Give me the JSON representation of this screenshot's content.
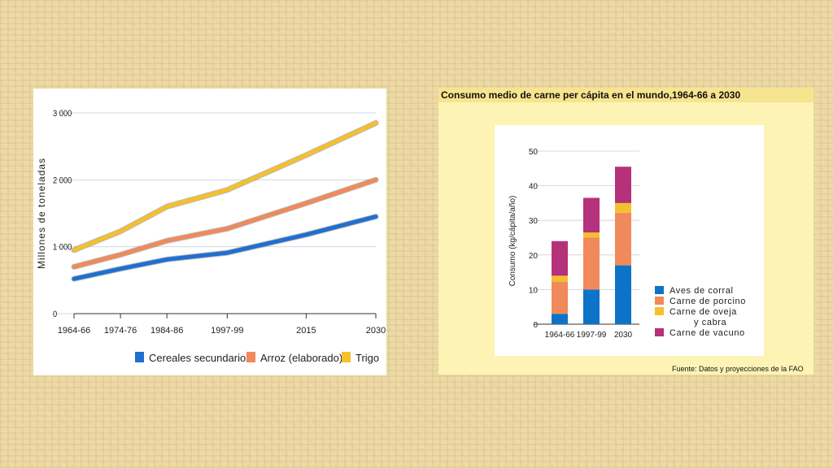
{
  "chart_data": [
    {
      "type": "line",
      "title": "",
      "ylabel": "Millones de toneladas",
      "xlabel": "",
      "ylim": [
        0,
        3000
      ],
      "yticks": [
        0,
        1000,
        2000,
        3000
      ],
      "ytick_labels": [
        "0",
        "1 000",
        "2 000",
        "3 000"
      ],
      "x": [
        "1964-66",
        "1974-76",
        "1984-86",
        "1997-99",
        "2015",
        "2030"
      ],
      "x_values": [
        1965,
        1975,
        1985,
        1998,
        2015,
        2030
      ],
      "grid": true,
      "legend_position": "bottom",
      "series": [
        {
          "name": "Cereales secundarios",
          "color": "#1f6fd1",
          "values": [
            520,
            670,
            810,
            910,
            1180,
            1450
          ]
        },
        {
          "name": "Arroz (elaborado)",
          "color": "#f08a5a",
          "values": [
            700,
            880,
            1090,
            1270,
            1650,
            2000
          ]
        },
        {
          "name": "Trigo",
          "color": "#f5c02c",
          "values": [
            950,
            1230,
            1600,
            1850,
            2370,
            2850
          ]
        }
      ]
    },
    {
      "type": "bar",
      "stacked": true,
      "title": "Consumo medio de carne per cápita en el mundo,1964-66 a 2030",
      "ylabel": "Consumo (kg/cápita/año)",
      "xlabel": "",
      "ylim": [
        0,
        50
      ],
      "yticks": [
        0,
        10,
        20,
        30,
        40,
        50
      ],
      "categories": [
        "1964-66",
        "1997-99",
        "2030"
      ],
      "legend_position": "right",
      "series": [
        {
          "name": "Aves de corral",
          "color": "#0d73c9",
          "values": [
            3,
            10,
            17
          ]
        },
        {
          "name": "Carne de porcino",
          "color": "#f08a5a",
          "values": [
            9.3,
            15,
            15.2
          ]
        },
        {
          "name": "Carne de oveja y cabra",
          "color": "#f5c02c",
          "values": [
            1.7,
            1.5,
            2.8
          ]
        },
        {
          "name": "Carne de vacuno",
          "color": "#b5317a",
          "values": [
            10,
            10,
            10.5
          ]
        }
      ],
      "legend_lines": [
        [
          "Aves de corral"
        ],
        [
          "Carne de porcino"
        ],
        [
          "Carne de oveja",
          "y cabra"
        ],
        [
          "Carne de vacuno"
        ]
      ],
      "source": "Fuente: Datos y proyecciones de la FAO"
    }
  ]
}
